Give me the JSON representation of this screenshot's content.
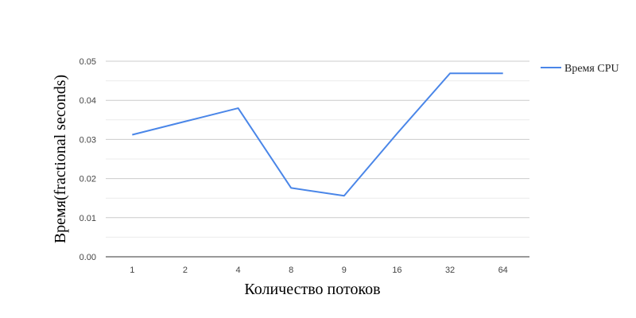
{
  "chart_data": {
    "type": "line",
    "categories": [
      "1",
      "2",
      "4",
      "8",
      "9",
      "16",
      "32",
      "64"
    ],
    "series": [
      {
        "name": "Время CPU",
        "color": "#4a86e8",
        "values": [
          0.0312,
          0.0346,
          0.038,
          0.0176,
          0.0156,
          0.0315,
          0.0469,
          0.0469
        ]
      }
    ],
    "xlabel": "Количество потоков",
    "ylabel": "Время(fractional seconds)",
    "ylim": [
      0,
      0.05
    ],
    "yticks": [
      "0.00",
      "0.01",
      "0.02",
      "0.03",
      "0.04",
      "0.05"
    ],
    "grid": true,
    "legend_position": "right"
  }
}
